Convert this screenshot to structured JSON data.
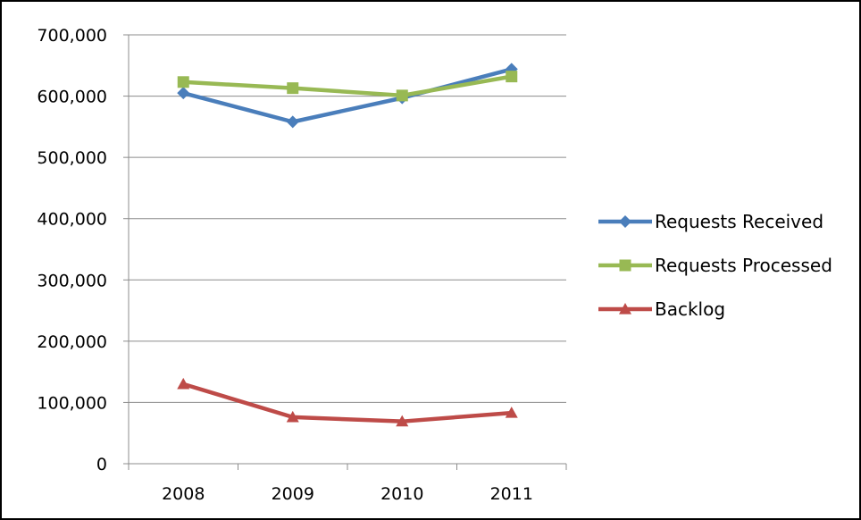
{
  "chart_data": {
    "type": "line",
    "title": "",
    "xlabel": "",
    "ylabel": "",
    "categories": [
      "2008",
      "2009",
      "2010",
      "2011"
    ],
    "ylim": [
      0,
      700000
    ],
    "yticks": [
      0,
      100000,
      200000,
      300000,
      400000,
      500000,
      600000,
      700000
    ],
    "ytick_labels": [
      "0",
      "100,000",
      "200,000",
      "300,000",
      "400,000",
      "500,000",
      "600,000",
      "700,000"
    ],
    "grid": true,
    "legend_position": "right",
    "series": [
      {
        "name": "Requests Received",
        "values": [
          605000,
          558000,
          597000,
          644000
        ],
        "color": "#4a7ebb",
        "marker": "diamond"
      },
      {
        "name": "Requests Processed",
        "values": [
          623000,
          613000,
          601000,
          632000
        ],
        "color": "#98b954",
        "marker": "square"
      },
      {
        "name": "Backlog",
        "values": [
          130000,
          76000,
          69000,
          83000
        ],
        "color": "#be4b48",
        "marker": "triangle"
      }
    ]
  }
}
